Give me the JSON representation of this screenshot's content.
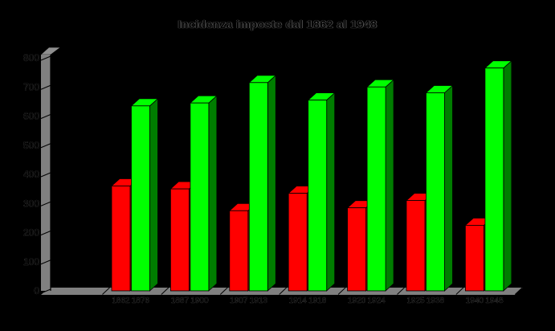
{
  "page": {
    "background": "#000000"
  },
  "chart_data": {
    "type": "bar",
    "title": "Incidenza imposte dal 1862 al 1948",
    "style": "3d-column-chart, black plot background, gray 3d wall and floor, black axis text with faint gray antialias halo",
    "ylim": [
      0,
      800
    ],
    "ytick_step": 100,
    "ytick_labels": [
      "0",
      "100",
      "200",
      "300",
      "400",
      "500",
      "600",
      "700",
      "800"
    ],
    "xlabel": "",
    "ylabel": "",
    "grid": false,
    "legend": false,
    "series": [
      {
        "name": "period-start-year",
        "color": "#ff0000",
        "side_color": "#8b0000",
        "categories": [
          "1862",
          "1887",
          "1907",
          "1914",
          "1920",
          "1925",
          "1940"
        ],
        "values": [
          360,
          350,
          275,
          335,
          285,
          310,
          225
        ]
      },
      {
        "name": "period-end-year",
        "color": "#00ff00",
        "side_color": "#007d00",
        "categories": [
          "1876",
          "1900",
          "1913",
          "1918",
          "1924",
          "1938",
          "1948"
        ],
        "values": [
          635,
          645,
          715,
          655,
          700,
          680,
          765
        ]
      }
    ],
    "colors": {
      "background": "#000000",
      "floor": "#808080",
      "wall": "#808080",
      "axis": "#000000",
      "text": "#000000"
    }
  }
}
